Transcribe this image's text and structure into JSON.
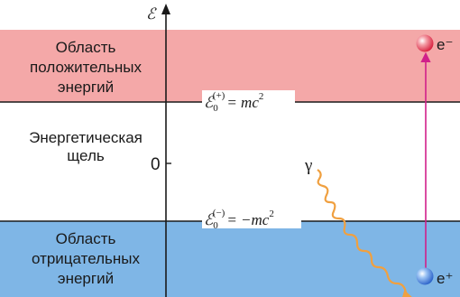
{
  "axis": {
    "symbol": "ℰ",
    "zero_label": "0"
  },
  "regions": {
    "positive": {
      "line1": "Область",
      "line2": "положительных",
      "line3": "энергий",
      "color": "#f4a8a8"
    },
    "gap": {
      "line1": "Энергетическая",
      "line2": "щель"
    },
    "negative": {
      "line1": "Область",
      "line2": "отрицательных",
      "line3": "энергий",
      "color": "#7fb6e6"
    }
  },
  "levels": {
    "upper": {
      "symbol": "ℰ",
      "sub": "0",
      "sup": "(+)",
      "rhs": "= mc",
      "power": "2"
    },
    "lower": {
      "symbol": "ℰ",
      "sub": "0",
      "sup": "(−)",
      "rhs": "= −mc",
      "power": "2"
    }
  },
  "particles": {
    "photon": {
      "label": "γ",
      "color": "#f0a040"
    },
    "electron": {
      "label": "e⁻",
      "color": "#e53950"
    },
    "positron": {
      "label": "e⁺",
      "color": "#3a78d8"
    },
    "transition_color": "#d0208a"
  }
}
